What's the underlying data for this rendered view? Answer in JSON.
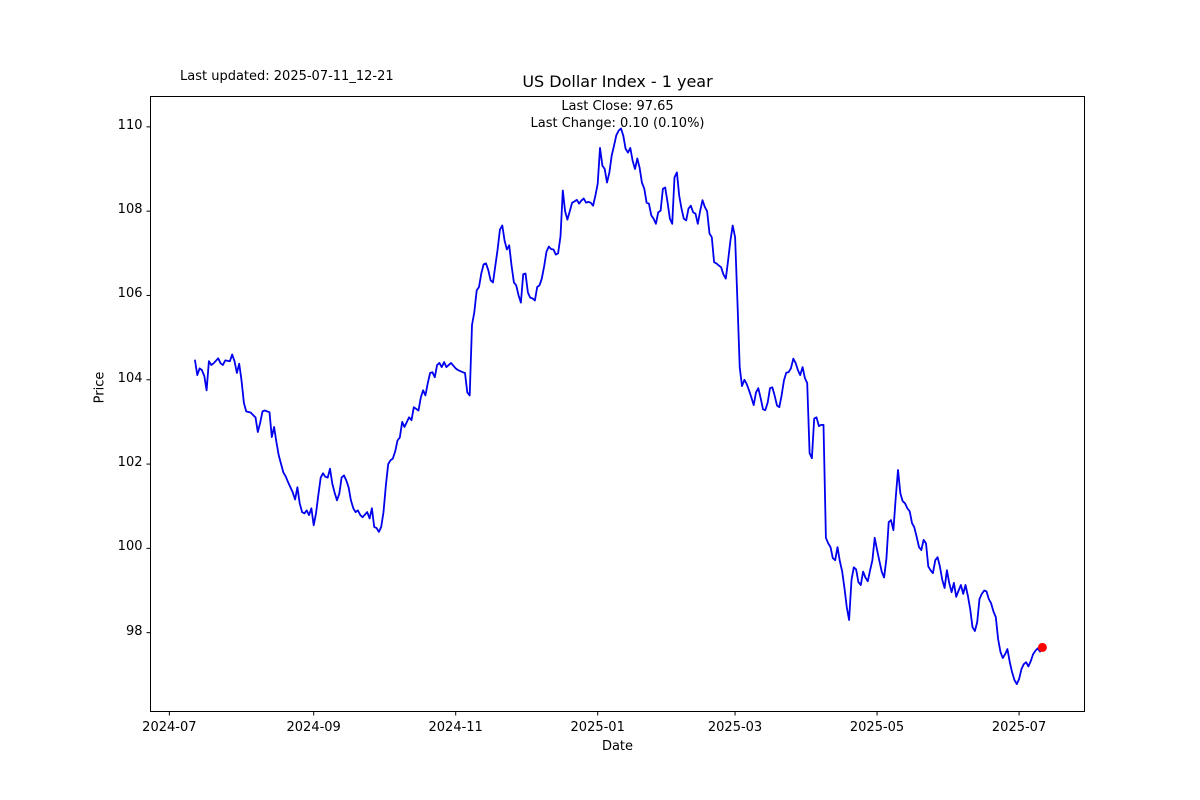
{
  "header": {
    "last_updated": "Last updated: 2025-07-11_12-21",
    "title": "US Dollar Index - 1 year",
    "subtitle_line1": "Last Close: 97.65",
    "subtitle_line2": "Last Change: 0.10 (0.10%)"
  },
  "chart_data": {
    "type": "line",
    "title": "US Dollar Index - 1 year",
    "xlabel": "Date",
    "ylabel": "Price",
    "legend": "none",
    "grid": false,
    "line_color": "#0000ee",
    "marker_color": "#ff0000",
    "text_color": "#000000",
    "last_close": 97.65,
    "last_change": "0.10 (0.10%)",
    "x_unit": "days since 2024-07-12",
    "x_start_date": "2024-07-12",
    "x_end_date": "2025-07-11",
    "x_range_days": [
      -19.1,
      382.1
    ],
    "y_range": [
      96.13,
      110.72
    ],
    "y_ticks": [
      98,
      100,
      102,
      104,
      106,
      108,
      110
    ],
    "x_ticks": [
      {
        "label": "2024-07",
        "day": -11
      },
      {
        "label": "2024-09",
        "day": 51
      },
      {
        "label": "2024-11",
        "day": 112
      },
      {
        "label": "2025-01",
        "day": 173
      },
      {
        "label": "2025-03",
        "day": 232
      },
      {
        "label": "2025-05",
        "day": 293
      },
      {
        "label": "2025-07",
        "day": 354
      }
    ],
    "points": [
      [
        0,
        104.46
      ],
      [
        1,
        104.11
      ],
      [
        2,
        104.27
      ],
      [
        3,
        104.23
      ],
      [
        4,
        104.09
      ],
      [
        5,
        103.75
      ],
      [
        6,
        104.44
      ],
      [
        7,
        104.35
      ],
      [
        8,
        104.39
      ],
      [
        10,
        104.51
      ],
      [
        11,
        104.39
      ],
      [
        12,
        104.35
      ],
      [
        13,
        104.46
      ],
      [
        15,
        104.44
      ],
      [
        16,
        104.6
      ],
      [
        17,
        104.44
      ],
      [
        18,
        104.16
      ],
      [
        19,
        104.38
      ],
      [
        20,
        103.99
      ],
      [
        21,
        103.45
      ],
      [
        22,
        103.25
      ],
      [
        24,
        103.22
      ],
      [
        25,
        103.16
      ],
      [
        26,
        103.11
      ],
      [
        27,
        102.76
      ],
      [
        28,
        102.97
      ],
      [
        29,
        103.25
      ],
      [
        30,
        103.27
      ],
      [
        31,
        103.25
      ],
      [
        32,
        103.23
      ],
      [
        33,
        102.64
      ],
      [
        34,
        102.88
      ],
      [
        35,
        102.52
      ],
      [
        36,
        102.2
      ],
      [
        37,
        102.0
      ],
      [
        38,
        101.8
      ],
      [
        39,
        101.7
      ],
      [
        40,
        101.57
      ],
      [
        41,
        101.45
      ],
      [
        42,
        101.33
      ],
      [
        43,
        101.16
      ],
      [
        44,
        101.45
      ],
      [
        45,
        101.07
      ],
      [
        46,
        100.86
      ],
      [
        47,
        100.83
      ],
      [
        48,
        100.9
      ],
      [
        49,
        100.79
      ],
      [
        50,
        100.95
      ],
      [
        51,
        100.55
      ],
      [
        52,
        100.83
      ],
      [
        53,
        101.26
      ],
      [
        54,
        101.68
      ],
      [
        55,
        101.78
      ],
      [
        56,
        101.7
      ],
      [
        57,
        101.68
      ],
      [
        58,
        101.89
      ],
      [
        59,
        101.54
      ],
      [
        60,
        101.32
      ],
      [
        61,
        101.14
      ],
      [
        62,
        101.3
      ],
      [
        63,
        101.68
      ],
      [
        64,
        101.73
      ],
      [
        65,
        101.61
      ],
      [
        66,
        101.45
      ],
      [
        67,
        101.14
      ],
      [
        68,
        100.95
      ],
      [
        69,
        100.86
      ],
      [
        70,
        100.9
      ],
      [
        71,
        100.79
      ],
      [
        72,
        100.74
      ],
      [
        74,
        100.86
      ],
      [
        75,
        100.71
      ],
      [
        76,
        100.95
      ],
      [
        77,
        100.51
      ],
      [
        78,
        100.48
      ],
      [
        79,
        100.39
      ],
      [
        80,
        100.51
      ],
      [
        81,
        100.86
      ],
      [
        82,
        101.5
      ],
      [
        83,
        102.0
      ],
      [
        84,
        102.09
      ],
      [
        85,
        102.13
      ],
      [
        86,
        102.3
      ],
      [
        87,
        102.56
      ],
      [
        88,
        102.63
      ],
      [
        89,
        103.0
      ],
      [
        90,
        102.88
      ],
      [
        92,
        103.11
      ],
      [
        93,
        103.04
      ],
      [
        94,
        103.35
      ],
      [
        96,
        103.27
      ],
      [
        97,
        103.58
      ],
      [
        98,
        103.75
      ],
      [
        99,
        103.63
      ],
      [
        100,
        103.92
      ],
      [
        101,
        104.16
      ],
      [
        102,
        104.18
      ],
      [
        103,
        104.06
      ],
      [
        104,
        104.35
      ],
      [
        105,
        104.4
      ],
      [
        106,
        104.3
      ],
      [
        107,
        104.42
      ],
      [
        108,
        104.3
      ],
      [
        110,
        104.4
      ],
      [
        112,
        104.27
      ],
      [
        113,
        104.23
      ],
      [
        115,
        104.18
      ],
      [
        116,
        104.16
      ],
      [
        117,
        103.7
      ],
      [
        118,
        103.63
      ],
      [
        119,
        105.3
      ],
      [
        120,
        105.6
      ],
      [
        121,
        106.12
      ],
      [
        122,
        106.2
      ],
      [
        123,
        106.52
      ],
      [
        124,
        106.74
      ],
      [
        125,
        106.76
      ],
      [
        126,
        106.6
      ],
      [
        127,
        106.36
      ],
      [
        128,
        106.31
      ],
      [
        129,
        106.7
      ],
      [
        130,
        107.09
      ],
      [
        131,
        107.56
      ],
      [
        132,
        107.66
      ],
      [
        133,
        107.3
      ],
      [
        134,
        107.09
      ],
      [
        135,
        107.19
      ],
      [
        136,
        106.7
      ],
      [
        137,
        106.31
      ],
      [
        138,
        106.24
      ],
      [
        139,
        106.0
      ],
      [
        140,
        105.83
      ],
      [
        141,
        106.5
      ],
      [
        142,
        106.52
      ],
      [
        143,
        106.07
      ],
      [
        144,
        105.95
      ],
      [
        145,
        105.93
      ],
      [
        146,
        105.88
      ],
      [
        147,
        106.2
      ],
      [
        148,
        106.24
      ],
      [
        149,
        106.4
      ],
      [
        150,
        106.7
      ],
      [
        151,
        107.04
      ],
      [
        152,
        107.16
      ],
      [
        153,
        107.1
      ],
      [
        154,
        107.09
      ],
      [
        155,
        106.97
      ],
      [
        156,
        107.0
      ],
      [
        157,
        107.4
      ],
      [
        158,
        108.49
      ],
      [
        159,
        108.0
      ],
      [
        160,
        107.8
      ],
      [
        161,
        108.0
      ],
      [
        162,
        108.2
      ],
      [
        163,
        108.23
      ],
      [
        164,
        108.27
      ],
      [
        165,
        108.18
      ],
      [
        166,
        108.25
      ],
      [
        167,
        108.3
      ],
      [
        168,
        108.2
      ],
      [
        169,
        108.22
      ],
      [
        170,
        108.2
      ],
      [
        171,
        108.13
      ],
      [
        172,
        108.37
      ],
      [
        173,
        108.65
      ],
      [
        174,
        109.5
      ],
      [
        175,
        109.08
      ],
      [
        176,
        109.0
      ],
      [
        177,
        108.68
      ],
      [
        178,
        108.92
      ],
      [
        179,
        109.32
      ],
      [
        180,
        109.55
      ],
      [
        181,
        109.8
      ],
      [
        182,
        109.91
      ],
      [
        183,
        109.96
      ],
      [
        184,
        109.79
      ],
      [
        185,
        109.48
      ],
      [
        186,
        109.39
      ],
      [
        187,
        109.5
      ],
      [
        188,
        109.2
      ],
      [
        189,
        109.0
      ],
      [
        190,
        109.25
      ],
      [
        191,
        109.03
      ],
      [
        192,
        108.68
      ],
      [
        193,
        108.53
      ],
      [
        194,
        108.2
      ],
      [
        195,
        108.18
      ],
      [
        196,
        107.9
      ],
      [
        197,
        107.82
      ],
      [
        198,
        107.7
      ],
      [
        199,
        107.97
      ],
      [
        200,
        108.01
      ],
      [
        201,
        108.53
      ],
      [
        202,
        108.56
      ],
      [
        203,
        108.2
      ],
      [
        204,
        107.82
      ],
      [
        205,
        107.7
      ],
      [
        206,
        108.8
      ],
      [
        207,
        108.92
      ],
      [
        208,
        108.37
      ],
      [
        209,
        108.06
      ],
      [
        210,
        107.82
      ],
      [
        211,
        107.78
      ],
      [
        212,
        108.06
      ],
      [
        213,
        108.13
      ],
      [
        214,
        107.97
      ],
      [
        215,
        107.94
      ],
      [
        216,
        107.7
      ],
      [
        217,
        108.0
      ],
      [
        218,
        108.26
      ],
      [
        219,
        108.1
      ],
      [
        220,
        108.0
      ],
      [
        221,
        107.47
      ],
      [
        222,
        107.38
      ],
      [
        223,
        106.79
      ],
      [
        224,
        106.76
      ],
      [
        225,
        106.71
      ],
      [
        226,
        106.67
      ],
      [
        227,
        106.5
      ],
      [
        228,
        106.4
      ],
      [
        229,
        106.83
      ],
      [
        230,
        107.3
      ],
      [
        231,
        107.66
      ],
      [
        232,
        107.38
      ],
      [
        233,
        105.88
      ],
      [
        234,
        104.3
      ],
      [
        235,
        103.85
      ],
      [
        236,
        104.0
      ],
      [
        237,
        103.9
      ],
      [
        238,
        103.75
      ],
      [
        239,
        103.58
      ],
      [
        240,
        103.4
      ],
      [
        241,
        103.7
      ],
      [
        242,
        103.8
      ],
      [
        243,
        103.56
      ],
      [
        244,
        103.3
      ],
      [
        245,
        103.28
      ],
      [
        246,
        103.46
      ],
      [
        247,
        103.8
      ],
      [
        248,
        103.82
      ],
      [
        249,
        103.63
      ],
      [
        250,
        103.39
      ],
      [
        251,
        103.35
      ],
      [
        252,
        103.63
      ],
      [
        253,
        103.99
      ],
      [
        254,
        104.17
      ],
      [
        255,
        104.18
      ],
      [
        256,
        104.27
      ],
      [
        257,
        104.5
      ],
      [
        258,
        104.4
      ],
      [
        259,
        104.23
      ],
      [
        260,
        104.11
      ],
      [
        261,
        104.3
      ],
      [
        262,
        104.04
      ],
      [
        263,
        103.92
      ],
      [
        264,
        102.26
      ],
      [
        265,
        102.14
      ],
      [
        266,
        103.08
      ],
      [
        267,
        103.11
      ],
      [
        268,
        102.9
      ],
      [
        269,
        102.93
      ],
      [
        270,
        102.93
      ],
      [
        271,
        100.25
      ],
      [
        272,
        100.12
      ],
      [
        273,
        100.03
      ],
      [
        274,
        99.77
      ],
      [
        275,
        99.72
      ],
      [
        276,
        100.03
      ],
      [
        277,
        99.7
      ],
      [
        278,
        99.45
      ],
      [
        279,
        99.05
      ],
      [
        280,
        98.6
      ],
      [
        281,
        98.3
      ],
      [
        282,
        99.25
      ],
      [
        283,
        99.55
      ],
      [
        284,
        99.5
      ],
      [
        285,
        99.2
      ],
      [
        286,
        99.13
      ],
      [
        287,
        99.45
      ],
      [
        288,
        99.31
      ],
      [
        289,
        99.22
      ],
      [
        290,
        99.48
      ],
      [
        291,
        99.72
      ],
      [
        292,
        100.25
      ],
      [
        293,
        99.96
      ],
      [
        294,
        99.7
      ],
      [
        295,
        99.45
      ],
      [
        296,
        99.31
      ],
      [
        297,
        99.75
      ],
      [
        298,
        100.62
      ],
      [
        299,
        100.67
      ],
      [
        300,
        100.43
      ],
      [
        301,
        101.19
      ],
      [
        302,
        101.86
      ],
      [
        303,
        101.3
      ],
      [
        304,
        101.12
      ],
      [
        305,
        101.07
      ],
      [
        306,
        100.95
      ],
      [
        307,
        100.88
      ],
      [
        308,
        100.6
      ],
      [
        309,
        100.5
      ],
      [
        310,
        100.27
      ],
      [
        311,
        100.03
      ],
      [
        312,
        99.96
      ],
      [
        313,
        100.2
      ],
      [
        314,
        100.12
      ],
      [
        315,
        99.57
      ],
      [
        316,
        99.48
      ],
      [
        317,
        99.41
      ],
      [
        318,
        99.72
      ],
      [
        319,
        99.79
      ],
      [
        320,
        99.57
      ],
      [
        321,
        99.25
      ],
      [
        322,
        99.06
      ],
      [
        323,
        99.48
      ],
      [
        324,
        99.18
      ],
      [
        325,
        98.96
      ],
      [
        326,
        99.18
      ],
      [
        327,
        98.85
      ],
      [
        328,
        99.0
      ],
      [
        329,
        99.13
      ],
      [
        330,
        98.92
      ],
      [
        331,
        99.13
      ],
      [
        332,
        98.87
      ],
      [
        333,
        98.56
      ],
      [
        334,
        98.13
      ],
      [
        335,
        98.04
      ],
      [
        336,
        98.25
      ],
      [
        337,
        98.8
      ],
      [
        338,
        98.92
      ],
      [
        339,
        99.0
      ],
      [
        340,
        98.98
      ],
      [
        341,
        98.8
      ],
      [
        342,
        98.7
      ],
      [
        343,
        98.5
      ],
      [
        344,
        98.37
      ],
      [
        345,
        97.85
      ],
      [
        346,
        97.54
      ],
      [
        347,
        97.4
      ],
      [
        348,
        97.49
      ],
      [
        349,
        97.61
      ],
      [
        350,
        97.3
      ],
      [
        351,
        97.06
      ],
      [
        352,
        96.88
      ],
      [
        353,
        96.78
      ],
      [
        354,
        96.9
      ],
      [
        355,
        97.13
      ],
      [
        356,
        97.25
      ],
      [
        357,
        97.3
      ],
      [
        358,
        97.2
      ],
      [
        359,
        97.32
      ],
      [
        360,
        97.49
      ],
      [
        361,
        97.57
      ],
      [
        362,
        97.63
      ],
      [
        363,
        97.55
      ],
      [
        364,
        97.65
      ]
    ]
  }
}
